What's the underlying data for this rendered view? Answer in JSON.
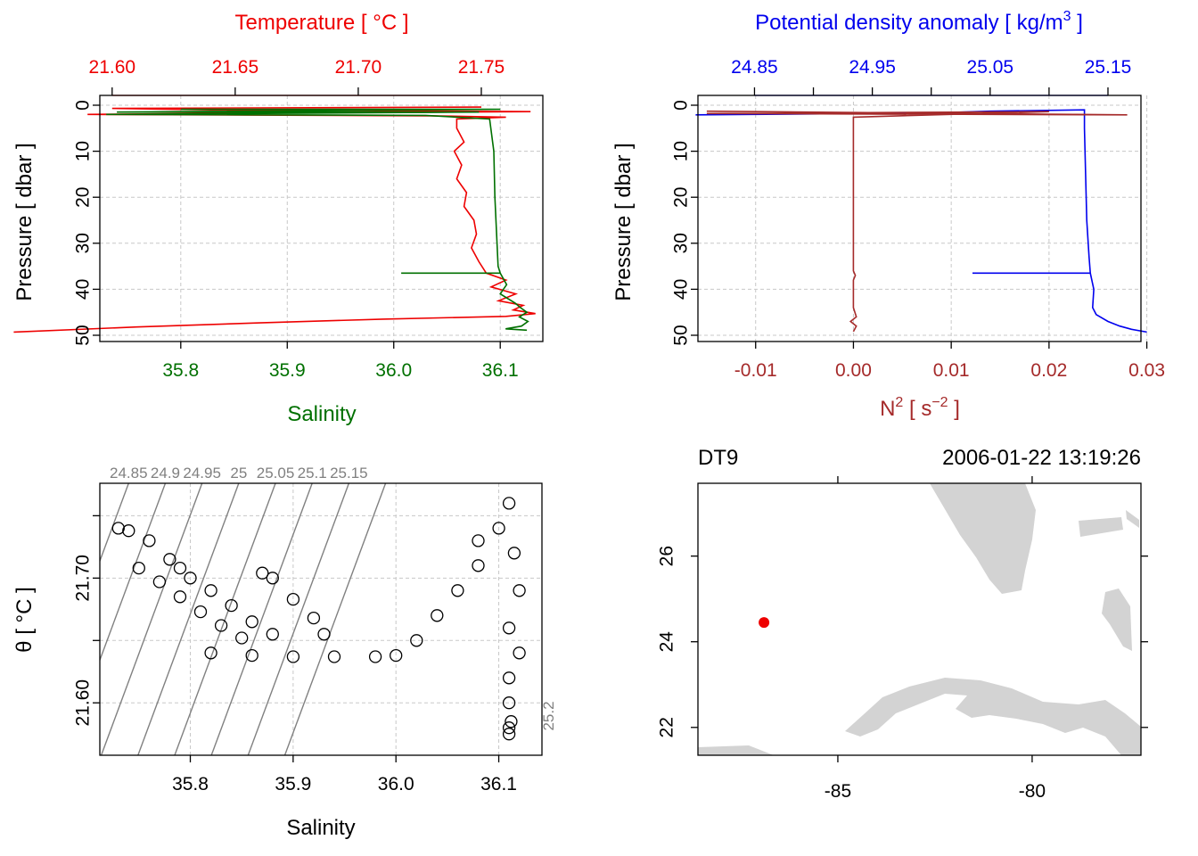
{
  "colors": {
    "temperature": "#ee0000",
    "salinity": "#007000",
    "density": "#0000ee",
    "n2": "#a52a2a",
    "isopycnal": "#808080",
    "land": "#d3d3d3",
    "station": "#ee0000",
    "grid": "#c8c8c8"
  },
  "chart_data": [
    {
      "id": "profile_ts",
      "type": "line",
      "top_axis_label": "Temperature [ °C ]",
      "top_ticks": [
        "21.60",
        "21.65",
        "21.70",
        "21.75"
      ],
      "top_lim": [
        21.595,
        21.775
      ],
      "bottom_axis_label": "Salinity",
      "bottom_ticks": [
        "35.8",
        "35.9",
        "36.0",
        "36.1"
      ],
      "bottom_lim": [
        35.724,
        36.14
      ],
      "ylabel": "Pressure [ dbar ]",
      "y_ticks": [
        "0",
        "10",
        "20",
        "30",
        "40",
        "50"
      ],
      "ylim": [
        50,
        0
      ],
      "grid": true,
      "series": [
        {
          "variable": "temperature",
          "color": "#ee0000",
          "points": [
            [
              21.75,
              0.4
            ],
            [
              21.6,
              0.7
            ],
            [
              21.64,
              1.0
            ],
            [
              21.77,
              1.4
            ],
            [
              21.66,
              1.7
            ],
            [
              21.59,
              2.0
            ],
            [
              21.73,
              2.3
            ],
            [
              21.76,
              2.6
            ],
            [
              21.74,
              3.0
            ],
            [
              21.74,
              5.0
            ],
            [
              21.743,
              8
            ],
            [
              21.739,
              10
            ],
            [
              21.742,
              13
            ],
            [
              21.74,
              16
            ],
            [
              21.744,
              19
            ],
            [
              21.743,
              22
            ],
            [
              21.747,
              25
            ],
            [
              21.748,
              28
            ],
            [
              21.746,
              31
            ],
            [
              21.749,
              34
            ],
            [
              21.752,
              36.5
            ],
            [
              21.76,
              38
            ],
            [
              21.754,
              39.5
            ],
            [
              21.764,
              41
            ],
            [
              21.757,
              42.5
            ],
            [
              21.767,
              43.5
            ],
            [
              21.763,
              44.5
            ],
            [
              21.772,
              45.3
            ],
            [
              21.76,
              45.9
            ],
            [
              21.71,
              46.5
            ],
            [
              21.66,
              47.3
            ],
            [
              21.61,
              48.2
            ],
            [
              21.56,
              49.3
            ]
          ]
        },
        {
          "variable": "salinity",
          "color": "#007000",
          "points": [
            [
              35.8,
              0.9
            ],
            [
              36.1,
              0.9
            ],
            [
              35.74,
              1.5
            ],
            [
              36.08,
              1.5
            ],
            [
              35.73,
              2.0
            ],
            [
              36.03,
              2.2
            ],
            [
              36.09,
              3.0
            ],
            [
              36.094,
              10
            ],
            [
              36.095,
              20
            ],
            [
              36.097,
              30
            ],
            [
              36.098,
              35
            ],
            [
              36.1,
              36.5
            ],
            [
              36.007,
              36.5
            ],
            [
              36.1,
              36.5
            ],
            [
              36.106,
              39
            ],
            [
              36.1,
              41
            ],
            [
              36.114,
              43
            ],
            [
              36.119,
              44
            ],
            [
              36.125,
              45
            ],
            [
              36.118,
              46
            ],
            [
              36.126,
              47
            ],
            [
              36.12,
              48
            ],
            [
              36.105,
              48.6
            ],
            [
              36.125,
              48.9
            ]
          ]
        }
      ]
    },
    {
      "id": "profile_density",
      "type": "line",
      "top_axis_label": "Potential density anomaly [ kg/m",
      "top_axis_label_sup": "3",
      "top_axis_label_end": " ]",
      "top_ticks": [
        "24.85",
        "24.95",
        "25.05",
        "25.15"
      ],
      "top_minor_ticks": [
        24.9,
        25.0,
        25.1
      ],
      "top_lim": [
        24.802,
        25.178
      ],
      "bottom_axis_label": "N",
      "bottom_axis_label_sup": "2",
      "bottom_axis_label_mid": " [ s",
      "bottom_axis_label_sup2": "−2",
      "bottom_axis_label_end": " ]",
      "bottom_ticks": [
        "-0.01",
        "0.00",
        "0.01",
        "0.02",
        "0.03"
      ],
      "bottom_lim": [
        -0.0159,
        0.0294
      ],
      "ylabel": "Pressure [ dbar ]",
      "y_ticks": [
        "0",
        "10",
        "20",
        "30",
        "40",
        "50"
      ],
      "ylim": [
        50,
        0
      ],
      "grid": true,
      "series": [
        {
          "variable": "potential density anomaly",
          "color": "#0000ee",
          "points": [
            [
              24.8,
              2.1
            ],
            [
              25.0,
              1.7
            ],
            [
              25.05,
              1.3
            ],
            [
              25.13,
              1.0
            ],
            [
              25.13,
              5
            ],
            [
              25.131,
              15
            ],
            [
              25.132,
              25
            ],
            [
              25.134,
              33
            ],
            [
              25.135,
              36.5
            ],
            [
              25.035,
              36.5
            ],
            [
              25.135,
              36.5
            ],
            [
              25.138,
              40
            ],
            [
              25.137,
              44
            ],
            [
              25.14,
              45.5
            ],
            [
              25.15,
              47
            ],
            [
              25.16,
              48
            ],
            [
              25.17,
              48.7
            ],
            [
              25.183,
              49.3
            ]
          ]
        },
        {
          "variable": "N2",
          "color": "#a52a2a",
          "points": [
            [
              -0.015,
              1.3
            ],
            [
              0.028,
              2.1
            ],
            [
              -0.015,
              1.8
            ],
            [
              0.02,
              1.4
            ],
            [
              0.0,
              2.6
            ],
            [
              0.0,
              10
            ],
            [
              0.0,
              20
            ],
            [
              0.0,
              30
            ],
            [
              0.0,
              36
            ],
            [
              0.0002,
              37
            ],
            [
              0.0,
              38
            ],
            [
              0.0,
              44
            ],
            [
              0.0003,
              46
            ],
            [
              -0.0003,
              47
            ],
            [
              0.0003,
              48
            ],
            [
              0.0,
              49.2
            ]
          ]
        }
      ]
    },
    {
      "id": "ts_diagram",
      "type": "scatter",
      "xlabel": "Salinity",
      "ylabel": "θ [ °C ]",
      "x_ticks": [
        "35.8",
        "35.9",
        "36.0",
        "36.1"
      ],
      "y_ticks": [
        "21.60",
        "21.70"
      ],
      "xlim": [
        35.712,
        36.142
      ],
      "ylim": [
        21.558,
        21.776
      ],
      "grid": true,
      "isopycnal_labels": [
        "24.85",
        "24.9",
        "24.95",
        "25",
        "25.05",
        "25.1",
        "25.15",
        "25.2"
      ],
      "points": [
        [
          35.73,
          21.74
        ],
        [
          35.74,
          21.738
        ],
        [
          35.76,
          21.73
        ],
        [
          35.78,
          21.715
        ],
        [
          35.79,
          21.708
        ],
        [
          35.8,
          21.7
        ],
        [
          35.82,
          21.69
        ],
        [
          35.84,
          21.678
        ],
        [
          35.86,
          21.665
        ],
        [
          35.88,
          21.655
        ],
        [
          35.75,
          21.708
        ],
        [
          35.77,
          21.697
        ],
        [
          35.79,
          21.685
        ],
        [
          35.81,
          21.673
        ],
        [
          35.83,
          21.662
        ],
        [
          35.85,
          21.652
        ],
        [
          35.87,
          21.704
        ],
        [
          35.88,
          21.7
        ],
        [
          35.9,
          21.683
        ],
        [
          35.92,
          21.668
        ],
        [
          35.93,
          21.655
        ],
        [
          35.82,
          21.64
        ],
        [
          35.86,
          21.638
        ],
        [
          35.9,
          21.637
        ],
        [
          35.94,
          21.637
        ],
        [
          35.98,
          21.637
        ],
        [
          36.0,
          21.638
        ],
        [
          36.02,
          21.65
        ],
        [
          36.04,
          21.67
        ],
        [
          36.06,
          21.69
        ],
        [
          36.08,
          21.71
        ],
        [
          36.08,
          21.73
        ],
        [
          36.1,
          21.74
        ],
        [
          36.11,
          21.76
        ],
        [
          36.115,
          21.72
        ],
        [
          36.12,
          21.69
        ],
        [
          36.11,
          21.66
        ],
        [
          36.12,
          21.64
        ],
        [
          36.11,
          21.62
        ],
        [
          36.11,
          21.6
        ],
        [
          36.112,
          21.585
        ],
        [
          36.11,
          21.58
        ],
        [
          36.11,
          21.575
        ]
      ]
    },
    {
      "id": "station_map",
      "type": "scatter",
      "station_name": "DT9",
      "station_time": "2006-01-22 13:19:26",
      "x_ticks": [
        "-85",
        "-80"
      ],
      "y_ticks": [
        "22",
        "24",
        "26"
      ],
      "xlim": [
        -88.6,
        -77.2
      ],
      "ylim": [
        21.35,
        27.7
      ],
      "station": {
        "lon": -86.9,
        "lat": 24.45
      }
    }
  ]
}
